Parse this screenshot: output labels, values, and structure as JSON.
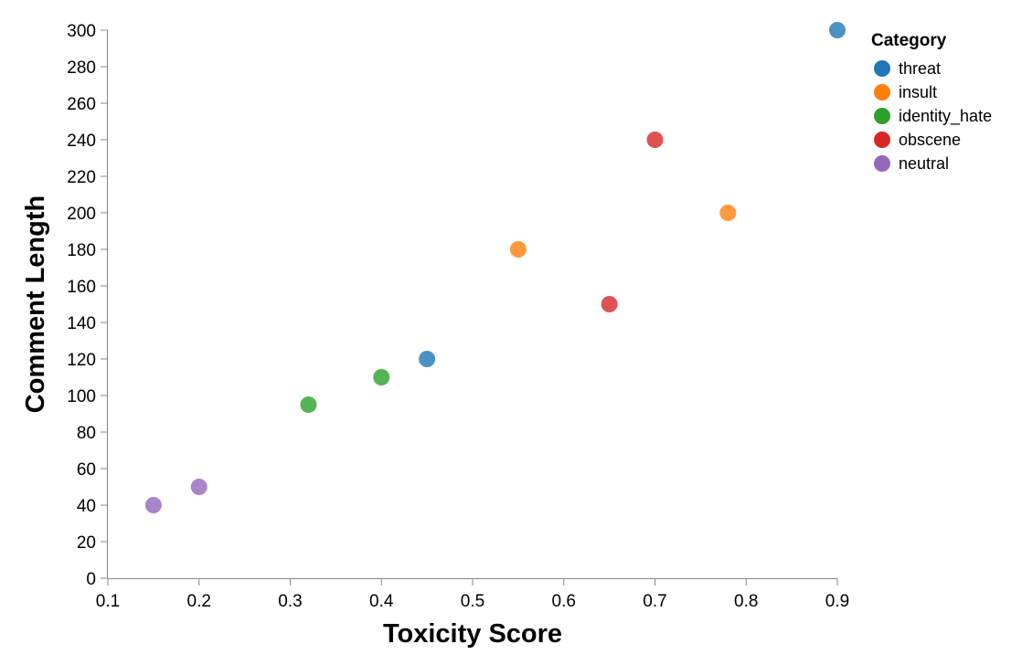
{
  "chart_data": {
    "type": "scatter",
    "xlabel": "Toxicity Score",
    "ylabel": "Comment Length",
    "xlim": [
      0.1,
      0.9
    ],
    "ylim": [
      0,
      300
    ],
    "x_ticks": [
      "0.1",
      "0.2",
      "0.3",
      "0.4",
      "0.5",
      "0.6",
      "0.7",
      "0.8",
      "0.9"
    ],
    "y_ticks": [
      "0",
      "20",
      "40",
      "60",
      "80",
      "100",
      "120",
      "140",
      "160",
      "180",
      "200",
      "220",
      "240",
      "260",
      "280",
      "300"
    ],
    "grid": false,
    "legend": {
      "title": "Category",
      "placement": "top-right",
      "entries": [
        {
          "name": "threat",
          "color": "#1f77b4"
        },
        {
          "name": "insult",
          "color": "#ff7f0e"
        },
        {
          "name": "identity_hate",
          "color": "#2ca02c"
        },
        {
          "name": "obscene",
          "color": "#d62728"
        },
        {
          "name": "neutral",
          "color": "#9467bd"
        }
      ]
    },
    "series": [
      {
        "name": "threat",
        "points": [
          {
            "x": 0.45,
            "y": 120
          },
          {
            "x": 0.9,
            "y": 300
          }
        ]
      },
      {
        "name": "insult",
        "points": [
          {
            "x": 0.55,
            "y": 180
          },
          {
            "x": 0.78,
            "y": 200
          }
        ]
      },
      {
        "name": "identity_hate",
        "points": [
          {
            "x": 0.32,
            "y": 95
          },
          {
            "x": 0.4,
            "y": 110
          }
        ]
      },
      {
        "name": "obscene",
        "points": [
          {
            "x": 0.65,
            "y": 150
          },
          {
            "x": 0.7,
            "y": 240
          }
        ]
      },
      {
        "name": "neutral",
        "points": [
          {
            "x": 0.15,
            "y": 40
          },
          {
            "x": 0.2,
            "y": 50
          }
        ]
      }
    ]
  }
}
